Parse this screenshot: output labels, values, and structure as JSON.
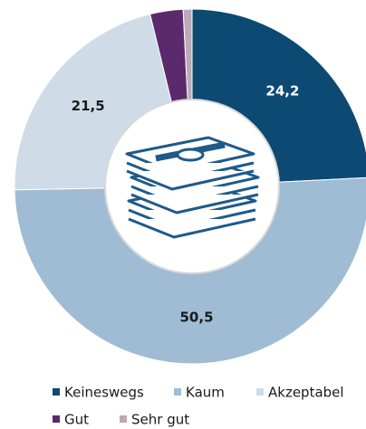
{
  "chart_data": {
    "type": "donut",
    "categories": [
      "Keineswegs",
      "Kaum",
      "Akzeptabel",
      "Gut",
      "Sehr gut"
    ],
    "values": [
      24.2,
      50.5,
      21.5,
      3.0,
      0.8
    ],
    "value_labels": [
      "24,2",
      "50,5",
      "21,5",
      null,
      null
    ],
    "colors": [
      "#0c4a73",
      "#9fbcd4",
      "#cfdce8",
      "#5b2a6d",
      "#bcaab8"
    ],
    "legend": "bottom"
  }
}
